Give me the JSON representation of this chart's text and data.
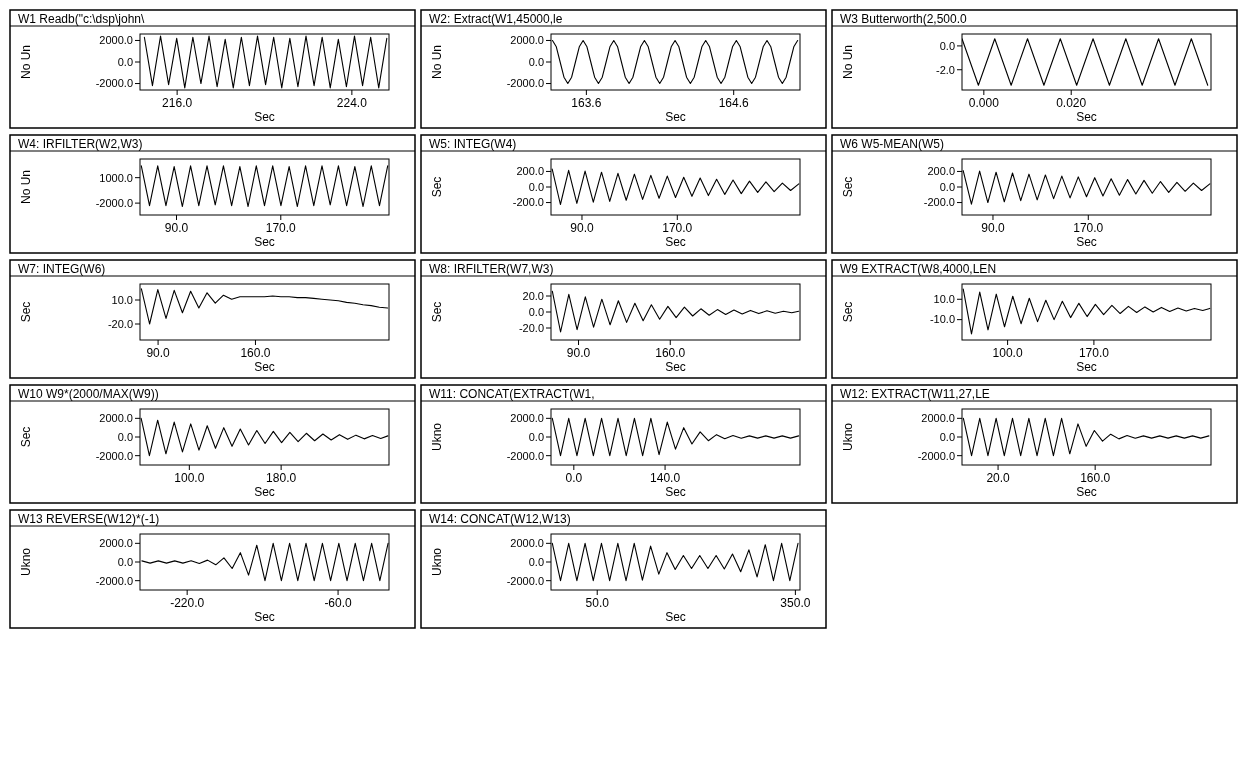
{
  "chart_data": [
    {
      "type": "line",
      "title": "W1 Readb(\"c:\\dsp\\john\\",
      "xlabel": "Sec",
      "ylabel": "No Un",
      "color": "#000000",
      "xlim": [
        214.3,
        225.7
      ],
      "xticks": [
        {
          "value": 216,
          "label": "216.0"
        },
        {
          "value": 224,
          "label": "224.0"
        }
      ],
      "ylim": [
        -2600,
        2600
      ],
      "yticks": [
        {
          "value": 2000,
          "label": "2000.0"
        },
        {
          "value": 0,
          "label": "0.0"
        },
        {
          "value": -2000,
          "label": "-2000.0"
        }
      ],
      "x": [
        214.5,
        214.87,
        215.24,
        215.61,
        215.98,
        216.35,
        216.72,
        217.09,
        217.46,
        217.83,
        218.2,
        218.57,
        218.94,
        219.31,
        219.68,
        220.05,
        220.42,
        220.79,
        221.16,
        221.53,
        221.9,
        222.27,
        222.64,
        223.01,
        223.38,
        223.75,
        224.12,
        224.49,
        224.86,
        225.23,
        225.6
      ],
      "values": [
        2300,
        -2200,
        2400,
        -2100,
        2200,
        -2400,
        2300,
        -2000,
        2400,
        -2300,
        2100,
        -2400,
        2300,
        -2200,
        2400,
        -2100,
        2300,
        -2400,
        2200,
        -2300,
        2400,
        -2200,
        2300,
        -2400,
        2100,
        -2300,
        2400,
        -2200,
        2300,
        -2400,
        2200
      ]
    },
    {
      "type": "line",
      "title": "W2: Extract(W1,45000,le",
      "xlabel": "Sec",
      "ylabel": "No Un",
      "color": "#000000",
      "xlim": [
        163.36,
        165.05
      ],
      "xticks": [
        {
          "value": 163.6,
          "label": "163.6"
        },
        {
          "value": 164.6,
          "label": "164.6"
        }
      ],
      "ylim": [
        -2600,
        2600
      ],
      "yticks": [
        {
          "value": 2000,
          "label": "2000.0"
        },
        {
          "value": 0,
          "label": "0.0"
        },
        {
          "value": -2000,
          "label": "-2000.0"
        }
      ],
      "x": [
        163.37,
        163.396,
        163.422,
        163.448,
        163.474,
        163.5,
        163.526,
        163.552,
        163.578,
        163.604,
        163.63,
        163.656,
        163.682,
        163.708,
        163.734,
        163.76,
        163.786,
        163.812,
        163.838,
        163.864,
        163.89,
        163.916,
        163.942,
        163.968,
        163.994,
        164.02,
        164.046,
        164.072,
        164.098,
        164.124,
        164.15,
        164.176,
        164.202,
        164.228,
        164.254,
        164.28,
        164.306,
        164.332,
        164.358,
        164.384,
        164.41,
        164.436,
        164.462,
        164.488,
        164.514,
        164.54,
        164.566,
        164.592,
        164.618,
        164.644,
        164.67,
        164.696,
        164.722,
        164.748,
        164.774,
        164.8,
        164.826,
        164.852,
        164.878,
        164.904,
        164.93,
        164.956,
        164.982,
        165.008,
        165.034
      ],
      "values": [
        2000,
        1414,
        0,
        -1414,
        -2000,
        -1414,
        0,
        1414,
        2000,
        1414,
        0,
        -1414,
        -2000,
        -1414,
        0,
        1414,
        2000,
        1414,
        0,
        -1414,
        -2000,
        -1414,
        0,
        1414,
        2000,
        1414,
        0,
        -1414,
        -2000,
        -1414,
        0,
        1414,
        2000,
        1414,
        0,
        -1414,
        -2000,
        -1414,
        0,
        1414,
        2000,
        1414,
        0,
        -1414,
        -2000,
        -1414,
        0,
        1414,
        2000,
        1414,
        0,
        -1414,
        -2000,
        -1414,
        0,
        1414,
        2000,
        1414,
        0,
        -1414,
        -2000,
        -1414,
        0,
        1414,
        2000
      ]
    },
    {
      "type": "line",
      "title": "W3 Butterworth(2,500.0",
      "xlabel": "Sec",
      "ylabel": "No Un",
      "color": "#000000",
      "xlim": [
        -0.005,
        0.052
      ],
      "xticks": [
        {
          "value": 0,
          "label": "0.000"
        },
        {
          "value": 0.02,
          "label": "0.020"
        }
      ],
      "ylim": [
        -3.7,
        1.0
      ],
      "yticks": [
        {
          "value": 0,
          "label": "0.0"
        },
        {
          "value": -2,
          "label": "-2.0"
        }
      ],
      "x": [
        -0.005,
        -0.00125,
        0.0025,
        0.00625,
        0.01,
        0.01375,
        0.0175,
        0.02125,
        0.025,
        0.02875,
        0.0325,
        0.03625,
        0.04,
        0.04375,
        0.0475,
        0.05125
      ],
      "values": [
        0.6,
        -3.3,
        0.6,
        -3.3,
        0.6,
        -3.3,
        0.6,
        -3.3,
        0.6,
        -3.3,
        0.6,
        -3.3,
        0.6,
        -3.3,
        0.6,
        -3.3
      ]
    },
    {
      "type": "line",
      "title": "W4: IRFILTER(W2,W3)",
      "xlabel": "Sec",
      "ylabel": "No Un",
      "color": "#000000",
      "xlim": [
        62,
        253
      ],
      "xticks": [
        {
          "value": 90,
          "label": "90.0"
        },
        {
          "value": 170,
          "label": "170.0"
        }
      ],
      "ylim": [
        -3400,
        3200
      ],
      "yticks": [
        {
          "value": 1000,
          "label": "1000.0"
        },
        {
          "value": -2000,
          "label": "-2000.0"
        }
      ],
      "x": [
        63,
        69.3,
        75.6,
        81.9,
        88.2,
        94.5,
        100.8,
        107.1,
        113.4,
        119.7,
        126,
        132.3,
        138.6,
        144.9,
        151.2,
        157.5,
        163.8,
        170.1,
        176.4,
        182.7,
        189,
        195.3,
        201.6,
        207.9,
        214.2,
        220.5,
        226.8,
        233.1,
        239.4,
        245.7,
        252
      ],
      "values": [
        2400,
        -2300,
        2400,
        -2300,
        2300,
        -2400,
        2400,
        -2300,
        2400,
        -2200,
        2400,
        -2300,
        2300,
        -2400,
        2400,
        -2300,
        2400,
        -2300,
        2300,
        -2400,
        2400,
        -2300,
        2400,
        -2200,
        2400,
        -2300,
        2300,
        -2400,
        2400,
        -2300,
        2400
      ]
    },
    {
      "type": "line",
      "title": "W5: INTEG(W4)",
      "xlabel": "Sec",
      "ylabel": "Sec",
      "color": "#000000",
      "xlim": [
        64,
        273
      ],
      "xticks": [
        {
          "value": 90,
          "label": "90.0"
        },
        {
          "value": 170,
          "label": "170.0"
        }
      ],
      "ylim": [
        -360,
        360
      ],
      "yticks": [
        {
          "value": 200,
          "label": "200.0"
        },
        {
          "value": 0,
          "label": "0.0"
        },
        {
          "value": -200,
          "label": "-200.0"
        }
      ],
      "x": [
        65,
        71.9,
        78.8,
        85.7,
        92.6,
        99.5,
        106.4,
        113.3,
        120.2,
        127.1,
        134,
        140.9,
        147.8,
        154.7,
        161.6,
        168.5,
        175.4,
        182.3,
        189.2,
        196.1,
        203,
        209.9,
        216.8,
        223.7,
        230.6,
        237.5,
        244.4,
        251.3,
        258.2,
        265.1,
        272
      ],
      "values": [
        230,
        -225,
        215,
        -210,
        205,
        -195,
        190,
        -185,
        175,
        -170,
        165,
        -160,
        150,
        -145,
        140,
        -135,
        125,
        -120,
        115,
        -110,
        100,
        -95,
        90,
        -85,
        75,
        -70,
        65,
        -60,
        50,
        -45,
        40
      ]
    },
    {
      "type": "line",
      "title": "W6 W5-MEAN(W5)",
      "xlabel": "Sec",
      "ylabel": "Sec",
      "color": "#000000",
      "xlim": [
        64,
        273
      ],
      "xticks": [
        {
          "value": 90,
          "label": "90.0"
        },
        {
          "value": 170,
          "label": "170.0"
        }
      ],
      "ylim": [
        -360,
        360
      ],
      "yticks": [
        {
          "value": 200,
          "label": "200.0"
        },
        {
          "value": 0,
          "label": "0.0"
        },
        {
          "value": -200,
          "label": "-200.0"
        }
      ],
      "x": [
        65,
        71.9,
        78.8,
        85.7,
        92.6,
        99.5,
        106.4,
        113.3,
        120.2,
        127.1,
        134,
        140.9,
        147.8,
        154.7,
        161.6,
        168.5,
        175.4,
        182.3,
        189.2,
        196.1,
        203,
        209.9,
        216.8,
        223.7,
        230.6,
        237.5,
        244.4,
        251.3,
        258.2,
        265.1,
        272
      ],
      "values": [
        210,
        -220,
        205,
        -200,
        190,
        -190,
        180,
        -175,
        165,
        -165,
        155,
        -150,
        140,
        -140,
        130,
        -125,
        120,
        -115,
        105,
        -105,
        95,
        -90,
        85,
        -80,
        70,
        -70,
        60,
        -55,
        50,
        -45,
        40
      ]
    },
    {
      "type": "line",
      "title": "W7: INTEG(W6)",
      "xlabel": "Sec",
      "ylabel": "Sec",
      "color": "#000000",
      "xlim": [
        77,
        256
      ],
      "xticks": [
        {
          "value": 90,
          "label": "90.0"
        },
        {
          "value": 160,
          "label": "160.0"
        }
      ],
      "ylim": [
        -40,
        30
      ],
      "yticks": [
        {
          "value": 10,
          "label": "10.0"
        },
        {
          "value": -20,
          "label": "-20.0"
        }
      ],
      "x": [
        78,
        83.9,
        89.8,
        95.7,
        101.6,
        107.5,
        113.4,
        119.3,
        125.2,
        131.1,
        137,
        142.9,
        148.8,
        154.7,
        160.6,
        166.5,
        172.4,
        178.3,
        184.2,
        190.1,
        196,
        201.9,
        207.8,
        213.7,
        219.6,
        225.5,
        231.4,
        237.3,
        243.2,
        249.1,
        255
      ],
      "values": [
        24,
        -20,
        23,
        -13,
        22,
        -6,
        21,
        0,
        19,
        6,
        16,
        11,
        14,
        14,
        14,
        14,
        15,
        14,
        14,
        13,
        13,
        12,
        11,
        10,
        9,
        7,
        6,
        4,
        3,
        1,
        0
      ]
    },
    {
      "type": "line",
      "title": "W8: IRFILTER(W7,W3)",
      "xlabel": "Sec",
      "ylabel": "Sec",
      "color": "#000000",
      "xlim": [
        69,
        259
      ],
      "xticks": [
        {
          "value": 90,
          "label": "90.0"
        },
        {
          "value": 160,
          "label": "160.0"
        }
      ],
      "ylim": [
        -35,
        35
      ],
      "yticks": [
        {
          "value": 20,
          "label": "20.0"
        },
        {
          "value": 0,
          "label": "0.0"
        },
        {
          "value": -20,
          "label": "-20.0"
        }
      ],
      "x": [
        70,
        76.3,
        82.6,
        88.9,
        95.2,
        101.5,
        107.8,
        114.1,
        120.4,
        126.7,
        133,
        139.3,
        145.6,
        151.9,
        158.2,
        164.5,
        170.8,
        177.1,
        183.4,
        189.7,
        196,
        202.3,
        208.6,
        214.9,
        221.2,
        227.5,
        233.8,
        240.1,
        246.4,
        252.7,
        258
      ],
      "values": [
        26,
        -25,
        22,
        -22,
        19,
        -19,
        16,
        -16,
        14,
        -13,
        11,
        -11,
        9,
        -9,
        7,
        -7,
        6,
        -5,
        4,
        -4,
        3,
        -3,
        2.5,
        -2.5,
        2,
        -2,
        1.5,
        -1.5,
        1,
        -1,
        1
      ]
    },
    {
      "type": "line",
      "title": "W9 EXTRACT(W8,4000,LEN",
      "xlabel": "Sec",
      "ylabel": "Sec",
      "color": "#000000",
      "xlim": [
        63,
        265
      ],
      "xticks": [
        {
          "value": 100,
          "label": "100.0"
        },
        {
          "value": 170,
          "label": "170.0"
        }
      ],
      "ylim": [
        -30,
        25
      ],
      "yticks": [
        {
          "value": 10,
          "label": "10.0"
        },
        {
          "value": -10,
          "label": "-10.0"
        }
      ],
      "x": [
        64,
        70.7,
        77.4,
        84.1,
        90.8,
        97.5,
        104.2,
        110.9,
        117.6,
        124.3,
        131,
        137.7,
        144.4,
        151.1,
        157.8,
        164.5,
        171.2,
        177.9,
        184.6,
        191.3,
        198,
        204.7,
        211.4,
        218.1,
        224.8,
        231.5,
        238.2,
        244.9,
        251.6,
        258.3,
        264
      ],
      "values": [
        20,
        -24,
        17,
        -20,
        15,
        -17,
        13,
        -14,
        11,
        -12,
        9,
        -10,
        8,
        -8,
        6,
        -7,
        5,
        -5,
        4,
        -4,
        3,
        -3,
        2.5,
        -2.5,
        2,
        -2,
        1.5,
        -1.5,
        1,
        -1,
        1
      ]
    },
    {
      "type": "line",
      "title": "W10 W9*(2000/MAX(W9))",
      "xlabel": "Sec",
      "ylabel": "Sec",
      "color": "#000000",
      "xlim": [
        57,
        274
      ],
      "xticks": [
        {
          "value": 100,
          "label": "100.0"
        },
        {
          "value": 180,
          "label": "180.0"
        }
      ],
      "ylim": [
        -3000,
        3000
      ],
      "yticks": [
        {
          "value": 2000,
          "label": "2000.0"
        },
        {
          "value": 0,
          "label": "0.0"
        },
        {
          "value": -2000,
          "label": "-2000.0"
        }
      ],
      "x": [
        58,
        65.2,
        72.4,
        79.6,
        86.8,
        94,
        101.2,
        108.4,
        115.6,
        122.8,
        130,
        137.2,
        144.4,
        151.6,
        158.8,
        166,
        173.2,
        180.4,
        187.6,
        194.8,
        202,
        209.2,
        216.4,
        223.6,
        230.8,
        238,
        245.2,
        252.4,
        259.6,
        266.8,
        273
      ],
      "values": [
        2000,
        -2000,
        1800,
        -1800,
        1600,
        -1600,
        1400,
        -1400,
        1200,
        -1200,
        1000,
        -1000,
        850,
        -850,
        700,
        -700,
        600,
        -600,
        500,
        -500,
        400,
        -400,
        320,
        -320,
        250,
        -250,
        200,
        -200,
        150,
        -150,
        120
      ]
    },
    {
      "type": "line",
      "title": "W11: CONCAT(EXTRACT(W1,",
      "xlabel": "Sec",
      "ylabel": "Ukno",
      "color": "#000000",
      "xlim": [
        -35,
        347
      ],
      "xticks": [
        {
          "value": 0,
          "label": "0.0"
        },
        {
          "value": 140,
          "label": "140.0"
        }
      ],
      "ylim": [
        -3000,
        3000
      ],
      "yticks": [
        {
          "value": 2000,
          "label": "2000.0"
        },
        {
          "value": 0,
          "label": "0.0"
        },
        {
          "value": -2000,
          "label": "-2000.0"
        }
      ],
      "x": [
        -33,
        -20.4,
        -7.8,
        4.8,
        17.4,
        30,
        42.6,
        55.2,
        67.8,
        80.4,
        93,
        105.6,
        118.2,
        130.8,
        143.4,
        156,
        168.6,
        181.2,
        193.8,
        206.4,
        219,
        231.6,
        244.2,
        256.8,
        269.4,
        282,
        294.6,
        307.2,
        319.8,
        332.4,
        345
      ],
      "values": [
        2000,
        -2000,
        2000,
        -2000,
        2000,
        -2000,
        2000,
        -2000,
        2000,
        -2000,
        2000,
        -2000,
        2000,
        -1900,
        1600,
        -1300,
        1000,
        -750,
        550,
        -400,
        250,
        -180,
        150,
        -130,
        120,
        -120,
        120,
        -120,
        120,
        -120,
        120
      ]
    },
    {
      "type": "line",
      "title": "W12: EXTRACT(W11,27,LE",
      "xlabel": "Sec",
      "ylabel": "Ukno",
      "color": "#000000",
      "xlim": [
        -32,
        327
      ],
      "xticks": [
        {
          "value": 20,
          "label": "20.0"
        },
        {
          "value": 160,
          "label": "160.0"
        }
      ],
      "ylim": [
        -3000,
        3000
      ],
      "yticks": [
        {
          "value": 2000,
          "label": "2000.0"
        },
        {
          "value": 0,
          "label": "0.0"
        },
        {
          "value": -2000,
          "label": "-2000.0"
        }
      ],
      "x": [
        -30,
        -18.2,
        -6.4,
        5.4,
        17.2,
        29,
        40.8,
        52.6,
        64.4,
        76.2,
        88,
        99.8,
        111.6,
        123.4,
        135.2,
        147,
        158.8,
        170.6,
        182.4,
        194.2,
        206,
        217.8,
        229.6,
        241.4,
        253.2,
        265,
        276.8,
        288.6,
        300.4,
        312.2,
        324
      ],
      "values": [
        2000,
        -2000,
        2000,
        -2000,
        2000,
        -2000,
        2000,
        -2000,
        2000,
        -2000,
        2000,
        -2000,
        2000,
        -1800,
        1400,
        -1000,
        700,
        -450,
        300,
        -200,
        150,
        -130,
        120,
        -120,
        120,
        -120,
        120,
        -120,
        120,
        -120,
        120
      ]
    },
    {
      "type": "line",
      "title": "W13 REVERSE(W12)*(-1)",
      "xlabel": "Sec",
      "ylabel": "Ukno",
      "color": "#000000",
      "xlim": [
        -270,
        -6
      ],
      "xticks": [
        {
          "value": -220,
          "label": "-220.0"
        },
        {
          "value": -60,
          "label": "-60.0"
        }
      ],
      "ylim": [
        -3000,
        3000
      ],
      "yticks": [
        {
          "value": 2000,
          "label": "2000.0"
        },
        {
          "value": 0,
          "label": "0.0"
        },
        {
          "value": -2000,
          "label": "-2000.0"
        }
      ],
      "x": [
        -268,
        -259.3,
        -250.6,
        -241.9,
        -233.2,
        -224.5,
        -215.8,
        -207.1,
        -198.4,
        -189.7,
        -181,
        -172.3,
        -163.6,
        -154.9,
        -146.2,
        -137.5,
        -128.8,
        -120.1,
        -111.4,
        -102.7,
        -94,
        -85.3,
        -76.6,
        -67.9,
        -59.2,
        -50.5,
        -41.8,
        -33.1,
        -24.4,
        -15.7,
        -7
      ],
      "values": [
        120,
        -120,
        120,
        -120,
        120,
        -120,
        130,
        -150,
        200,
        -300,
        450,
        -700,
        1000,
        -1400,
        1800,
        -2000,
        2000,
        -2000,
        2000,
        -2000,
        2000,
        -2000,
        2000,
        -2000,
        2000,
        -2000,
        2000,
        -2000,
        2000,
        -2000,
        2000
      ]
    },
    {
      "type": "line",
      "title": "W14: CONCAT(W12,W13)",
      "xlabel": "Sec",
      "ylabel": "Ukno",
      "color": "#000000",
      "xlim": [
        -20,
        357
      ],
      "xticks": [
        {
          "value": 50,
          "label": "50.0"
        },
        {
          "value": 350,
          "label": "350.0"
        }
      ],
      "ylim": [
        -3000,
        3000
      ],
      "yticks": [
        {
          "value": 2000,
          "label": "2000.0"
        },
        {
          "value": 0,
          "label": "0.0"
        },
        {
          "value": -2000,
          "label": "-2000.0"
        }
      ],
      "x": [
        -18,
        -5.6,
        6.8,
        19.2,
        31.6,
        44,
        56.4,
        68.8,
        81.2,
        93.6,
        106,
        118.4,
        130.8,
        143.2,
        155.6,
        168,
        180.4,
        192.8,
        205.2,
        217.6,
        230,
        242.4,
        254.8,
        267.2,
        279.6,
        292,
        304.4,
        316.8,
        329.2,
        341.6,
        354
      ],
      "values": [
        2000,
        -2000,
        2000,
        -2000,
        2000,
        -2000,
        2000,
        -2000,
        2000,
        -2000,
        2000,
        -1950,
        1700,
        -1300,
        1000,
        -800,
        700,
        -700,
        700,
        -700,
        700,
        -750,
        850,
        -1050,
        1300,
        -1600,
        1850,
        -2000,
        2000,
        -2000,
        2000
      ]
    }
  ]
}
